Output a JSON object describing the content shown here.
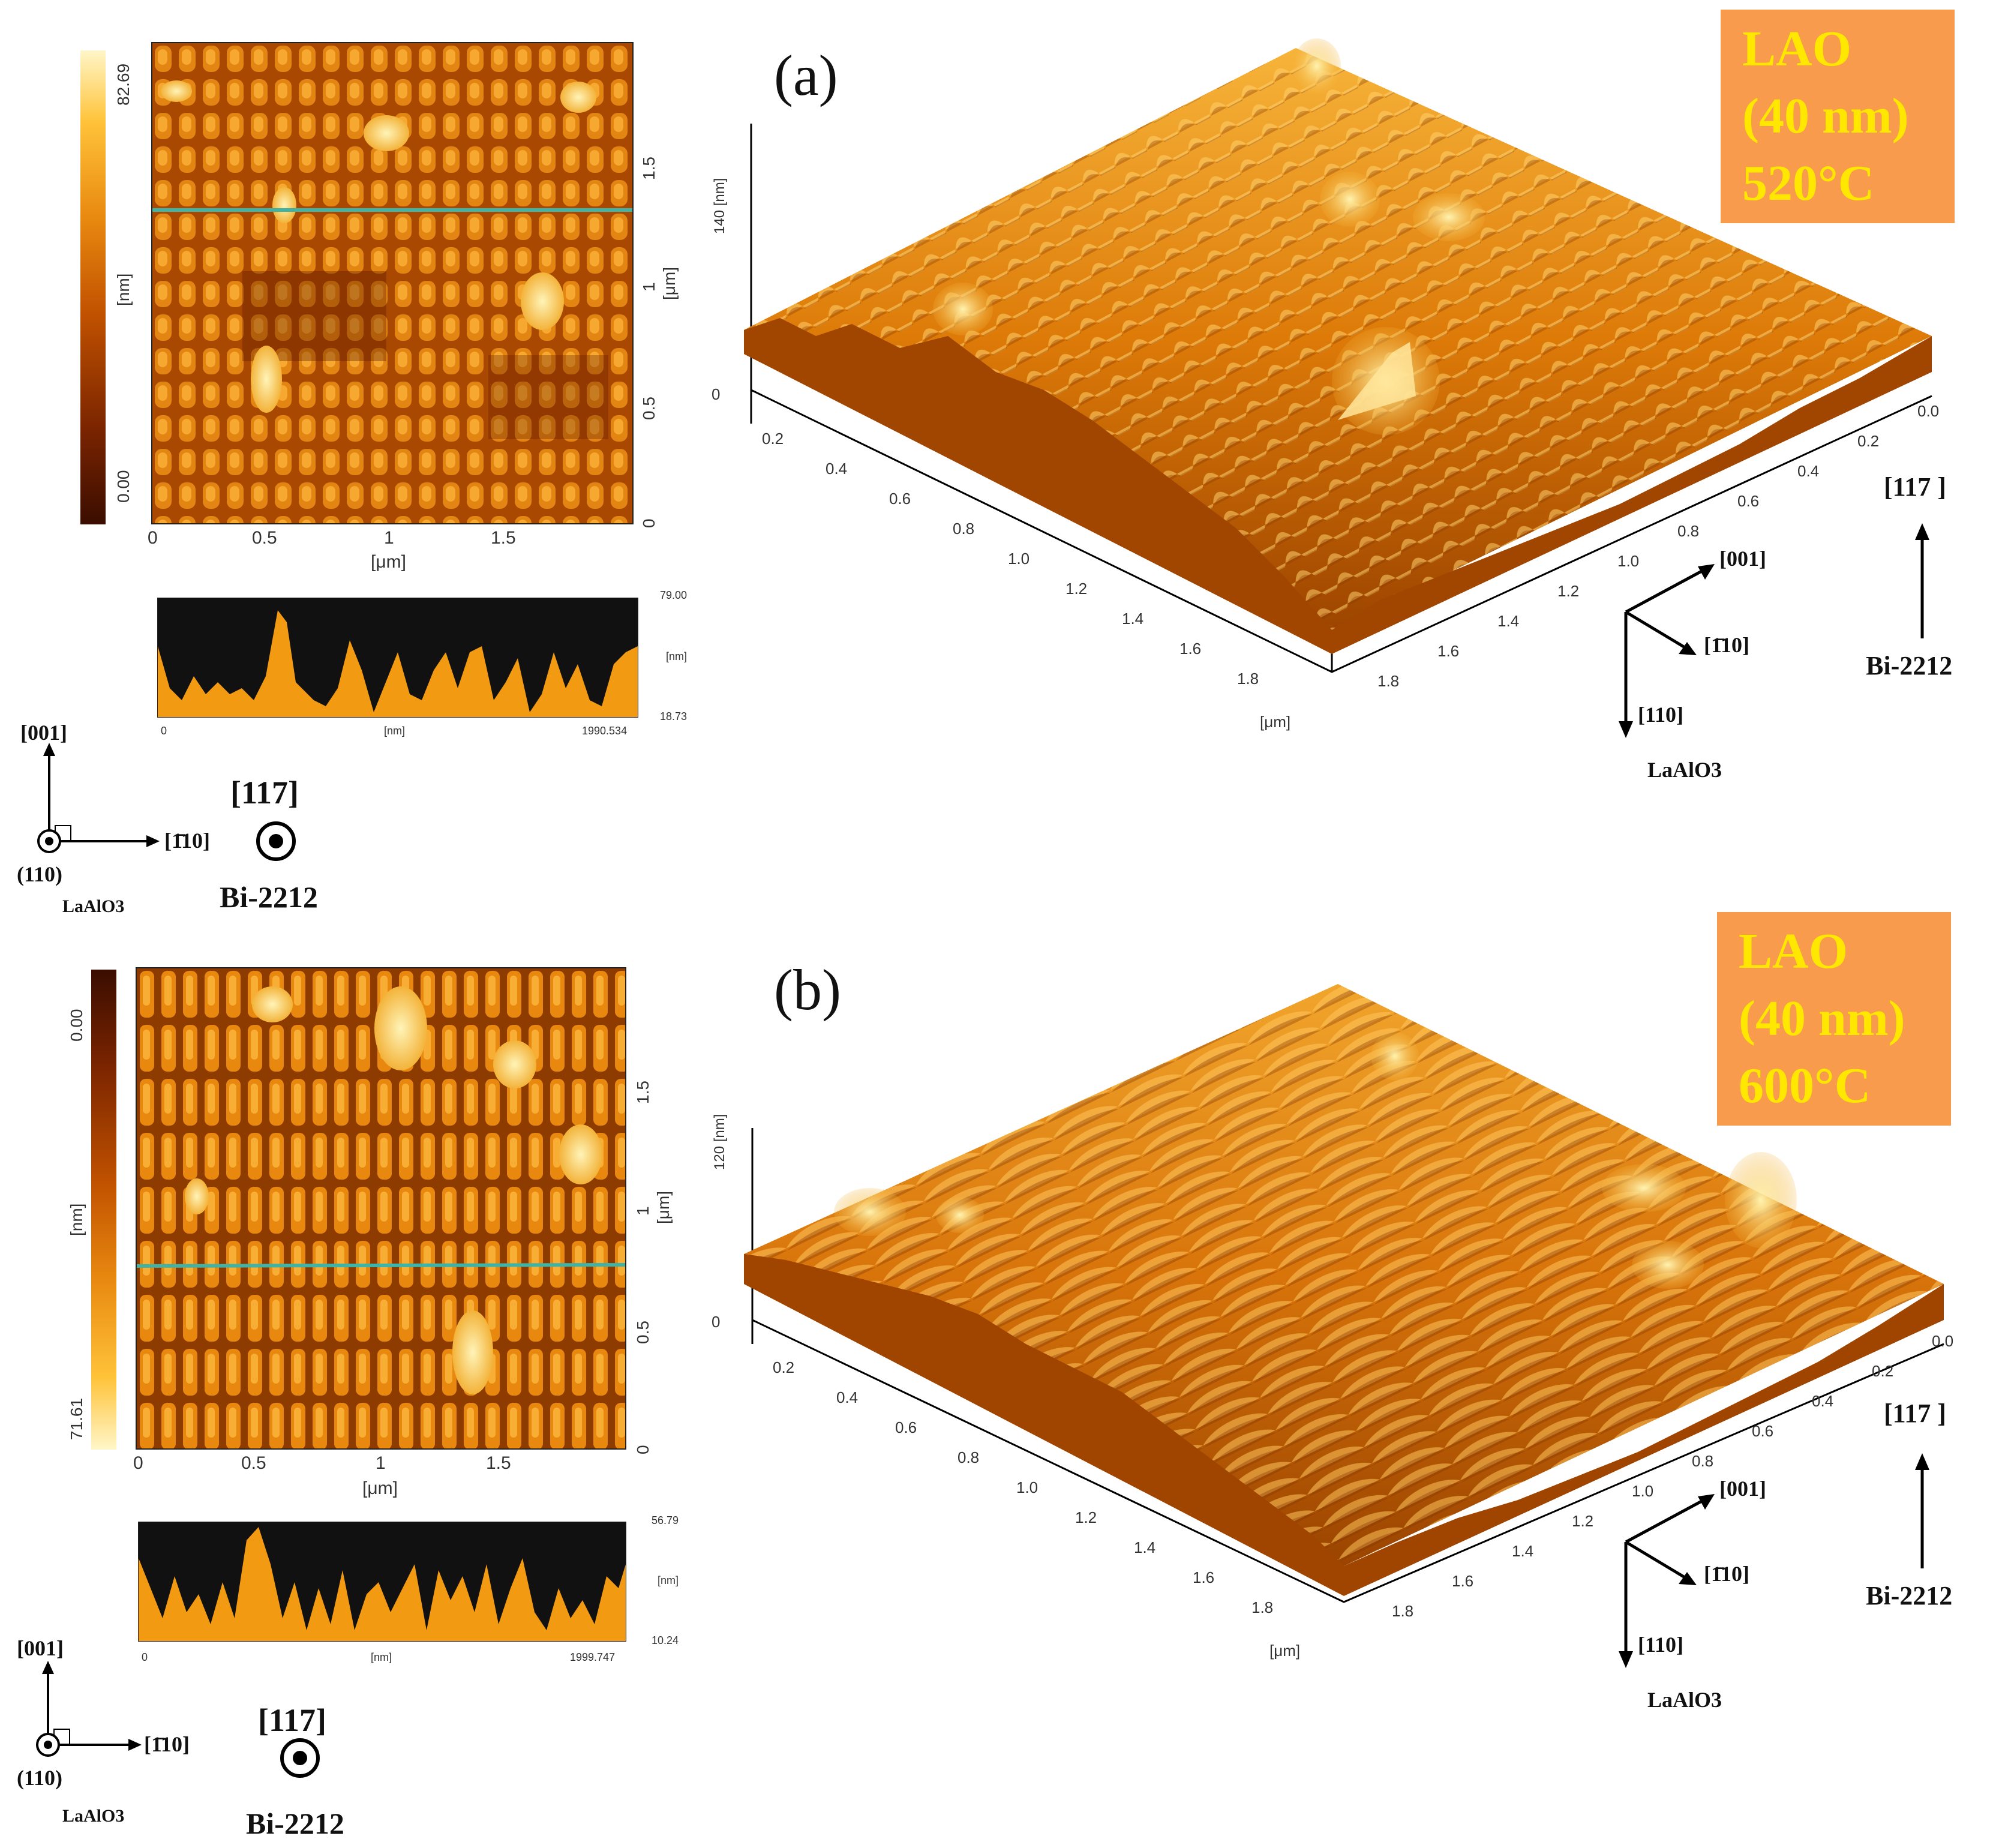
{
  "panels": [
    {
      "id": "a",
      "letter": "(a)",
      "box": {
        "line1": "LAO",
        "line2": "(40 nm)",
        "line3": "520°C"
      },
      "colorbar": {
        "top": "82.69",
        "bottom": "0.00",
        "unit": "[nm]"
      },
      "map2d": {
        "xticks": [
          "0",
          "0.5",
          "1",
          "1.5"
        ],
        "yticks": [
          "0",
          "0.5",
          "1",
          "1.5"
        ],
        "xunit": "[μm]",
        "yunit": "[μm]"
      },
      "profile": {
        "ymax": "79.00",
        "ymin": "18.73",
        "unit": "[nm]",
        "xmin": "0",
        "xmax": "1990.534",
        "xunit": "[nm]"
      },
      "plot3d": {
        "zticks": [
          "0",
          "140 [nm]"
        ],
        "left_ticks": [
          "0.2",
          "0.4",
          "0.6",
          "0.8",
          "1.0",
          "1.2",
          "1.4",
          "1.6",
          "1.8"
        ],
        "right_ticks": [
          "0.0",
          "0.2",
          "0.4",
          "0.6",
          "0.8",
          "1.0",
          "1.2",
          "1.4",
          "1.6",
          "1.8"
        ],
        "unit": "[μm]"
      },
      "axes3d": {
        "a001": "[001]",
        "a1b10": "[1̄10]",
        "a110": "[110]",
        "substrate": "LaAlO3",
        "film_dir": "[117 ]",
        "film": "Bi-2212"
      },
      "axes2d": {
        "a001": "[001]",
        "a1b10": "[1̄10]",
        "a110": "(110)",
        "substrate": "LaAlO3",
        "film_dir": "[117]",
        "film": "Bi-2212"
      }
    },
    {
      "id": "b",
      "letter": "(b)",
      "box": {
        "line1": "LAO",
        "line2": "(40 nm)",
        "line3": "600°C"
      },
      "colorbar": {
        "top": "0.00",
        "bottom": "71.61",
        "unit": "[nm]"
      },
      "map2d": {
        "xticks": [
          "0",
          "0.5",
          "1",
          "1.5"
        ],
        "yticks": [
          "0",
          "0.5",
          "1",
          "1.5"
        ],
        "xunit": "[μm]",
        "yunit": "[μm]"
      },
      "profile": {
        "ymax": "56.79",
        "ymin": "10.24",
        "unit": "[nm]",
        "xmin": "0",
        "xmax": "1999.747",
        "xunit": "[nm]"
      },
      "plot3d": {
        "zticks": [
          "0",
          "120 [nm]"
        ],
        "left_ticks": [
          "0.2",
          "0.4",
          "0.6",
          "0.8",
          "1.0",
          "1.2",
          "1.4",
          "1.6",
          "1.8"
        ],
        "right_ticks": [
          "0.0",
          "0.2",
          "0.4",
          "0.6",
          "0.8",
          "1.0",
          "1.2",
          "1.4",
          "1.6",
          "1.8"
        ],
        "unit": "[μm]"
      },
      "axes3d": {
        "a001": "[001]",
        "a1b10": "[1̄10]",
        "a110": "[110]",
        "substrate": "LaAlO3",
        "film_dir": "[117 ]",
        "film": "Bi-2212"
      },
      "axes2d": {
        "a001": "[001]",
        "a1b10": "[1̄10]",
        "a110": "(110)",
        "substrate": "LaAlO3",
        "film_dir": "[117]",
        "film": "Bi-2212"
      }
    }
  ],
  "colors": {
    "afm_dark": "#3a0d00",
    "afm_mid": "#d86a00",
    "afm_light": "#ffc33a",
    "afm_peak": "#fff1a8",
    "profile_fill": "#f29a12",
    "box_fill": "#f99b4c",
    "box_text": "#ffe700",
    "scanline": "#3fb3a6"
  }
}
